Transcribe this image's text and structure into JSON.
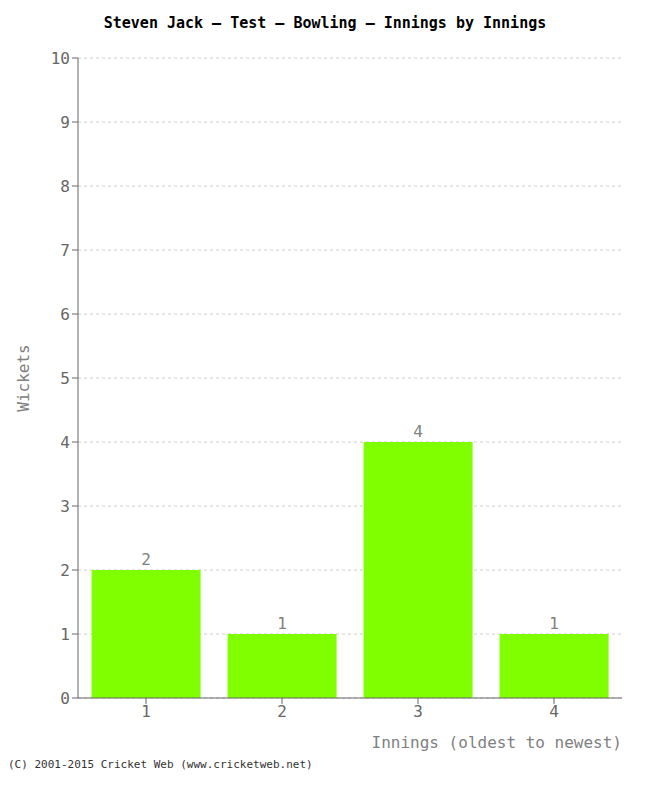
{
  "chart_data": {
    "type": "bar",
    "title": "Steven Jack – Test – Bowling – Innings by Innings",
    "xlabel": "Innings (oldest to newest)",
    "ylabel": "Wickets",
    "categories": [
      1,
      2,
      3,
      4
    ],
    "values": [
      2,
      1,
      4,
      1
    ],
    "color": "#7fff00",
    "ylim": [
      0,
      10
    ],
    "yticks": [
      0,
      1,
      2,
      3,
      4,
      5,
      6,
      7,
      8,
      9,
      10
    ],
    "grid": true,
    "data_labels": true,
    "annotations": [
      "(C) 2001-2015 Cricket Web (www.cricketweb.net)"
    ]
  }
}
